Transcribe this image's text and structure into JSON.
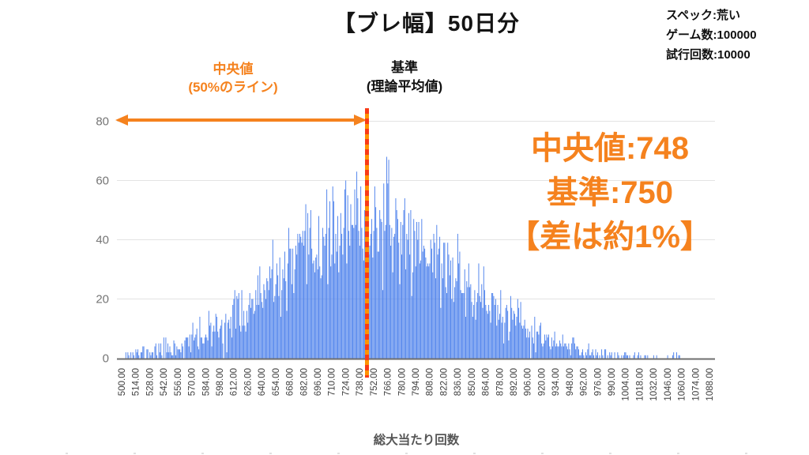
{
  "title": "【ブレ幅】50日分",
  "specs": {
    "line1": "スペック:荒い",
    "line2": "ゲーム数:100000",
    "line3": "試行回数:10000"
  },
  "annotations": {
    "median_arrow": {
      "line1": "中央値",
      "line2": "(50%のライン)"
    },
    "baseline": {
      "line1": "基準",
      "line2": "(理論平均値)"
    },
    "result": {
      "line1": "中央値:748",
      "line2": "基準:750",
      "line3": "【差は約1%】"
    }
  },
  "colors": {
    "accent_orange": "#f5821e",
    "dash_red": "#f93b18",
    "dash_orange": "#ff9300",
    "bar_blue": "#4e82ec",
    "grid_gray": "#e3e3e3",
    "axis_gray": "#6e6e6e",
    "ytick_gray": "#757575",
    "xtick_gray": "#3f3f3f",
    "xtitle_gray": "#555555"
  },
  "chart_data": {
    "type": "bar",
    "subtype": "histogram",
    "title": "【ブレ幅】50日分",
    "xlabel": "総大当たり回数",
    "ylabel": "",
    "ylim": [
      0,
      80
    ],
    "y_ticks": [
      0,
      20,
      40,
      60,
      80
    ],
    "grid": true,
    "legend": "none",
    "x_tick_labels": [
      "500.00",
      "514.00",
      "528.00",
      "542.00",
      "556.00",
      "570.00",
      "584.00",
      "598.00",
      "612.00",
      "626.00",
      "640.00",
      "654.00",
      "668.00",
      "682.00",
      "696.00",
      "710.00",
      "724.00",
      "738.00",
      "752.00",
      "766.00",
      "780.00",
      "794.00",
      "808.00",
      "822.00",
      "836.00",
      "850.00",
      "864.00",
      "878.00",
      "892.00",
      "906.00",
      "920.00",
      "934.00",
      "948.00",
      "962.00",
      "976.00",
      "990.00",
      "1004.00",
      "1018.00",
      "1032.00",
      "1046.00",
      "1060.00",
      "1074.00",
      "1088.00"
    ],
    "x_tick_start": 500,
    "x_tick_step": 14,
    "reference_line_x": 750,
    "median_x": 748,
    "distribution": {
      "kind": "simulated-normal-counts",
      "trials": 10000,
      "mean": 750,
      "median": 748,
      "sigma": 88,
      "x_min": 500,
      "x_max": 1100,
      "bin_width": 1,
      "peak_frequency_approx": 70,
      "seed": 11,
      "noise_scale": 1.2
    }
  }
}
